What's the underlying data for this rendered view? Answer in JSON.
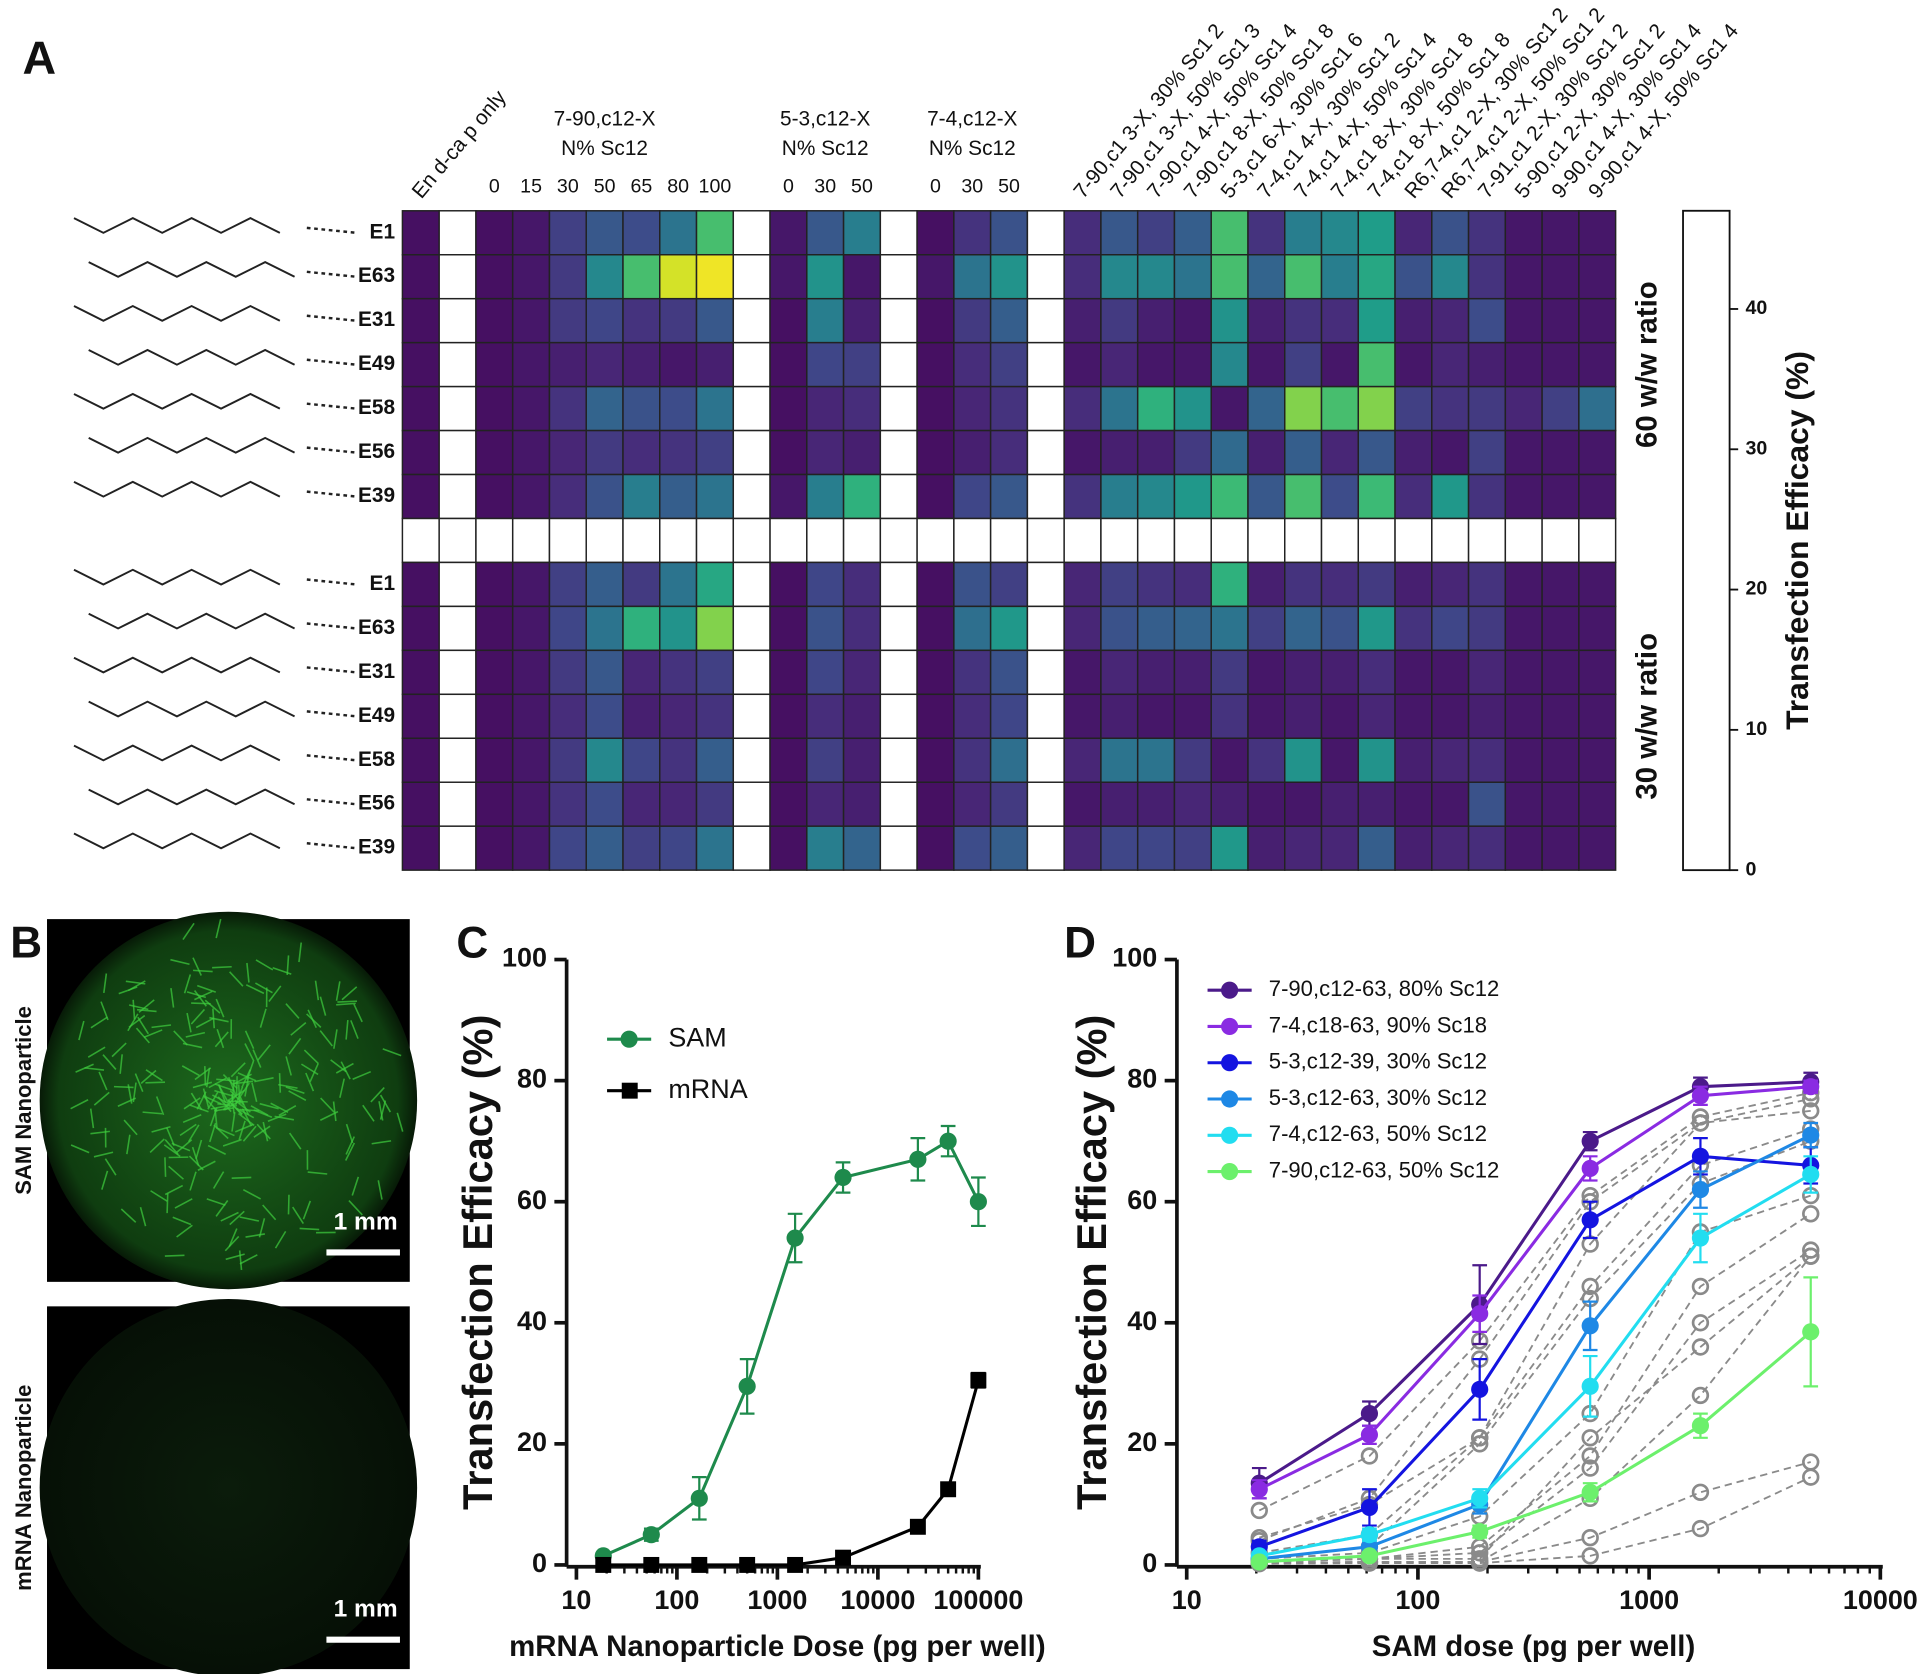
{
  "chart_data": [
    {
      "type": "heatmap",
      "panel": "A",
      "colorbar_label": "Transfection Efficacy (%)",
      "clim": [
        0,
        47
      ],
      "cticks": [
        0,
        10,
        20,
        30,
        40
      ],
      "colorbar_color": "#ffffff",
      "column_groups": [
        {
          "rotated": true,
          "columns": [
            "En d-ca p only"
          ]
        },
        {
          "title": [
            "7-90,c12-X",
            "N% Sc12"
          ],
          "columns": [
            "0",
            "15",
            "30",
            "50",
            "65",
            "80",
            "100"
          ]
        },
        {
          "title": [
            "5-3,c12-X",
            "N% Sc12"
          ],
          "columns": [
            "0",
            "30",
            "50"
          ]
        },
        {
          "title": [
            "7-4,c12-X",
            "N% Sc12"
          ],
          "columns": [
            "0",
            "30",
            "50"
          ]
        },
        {
          "rotated": true,
          "columns": [
            "7-90,c1 3-X, 30% Sc1 2",
            "7-90,c1 3-X, 50% Sc1 3",
            "7-90,c1 4-X, 50% Sc1 4",
            "7-90,c1 8-X, 50% Sc1 8",
            "5-3,c1 6-X, 30% Sc1 6",
            "7-4,c1 4-X, 30% Sc1 2",
            "7-4,c1 4-X, 50% Sc1 4",
            "7-4,c1 8-X, 30% Sc1 8",
            "7-4,c1 8-X, 50% Sc1 8",
            "R6,7-4,c1 2-X, 30% Sc1 2",
            "R6,7-4,c1 2-X, 50% Sc1 2",
            "7-91,c1 2-X, 30% Sc1 2",
            "5-90,c1 2-X, 30% Sc1 2",
            "9-90,c1 4-X, 30% Sc1 4",
            "9-90,c1 4-X, 50% Sc1 4"
          ]
        }
      ],
      "row_groups": [
        {
          "title": "60 w/w ratio",
          "rows": [
            "E1",
            "E63",
            "E31",
            "E49",
            "E58",
            "E56",
            "E39"
          ],
          "values": [
            [
              2,
              2,
              3,
              9,
              13,
              11,
              18,
              33,
              3,
              13,
              20,
              2,
              7,
              12,
              6,
              13,
              9,
              14,
              33,
              7,
              20,
              22,
              26,
              5,
              12,
              7,
              3,
              3,
              3
            ],
            [
              2,
              2,
              3,
              8,
              22,
              33,
              44,
              46,
              3,
              24,
              3,
              3,
              18,
              24,
              6,
              22,
              22,
              18,
              33,
              15,
              33,
              20,
              28,
              12,
              22,
              7,
              3,
              3,
              3
            ],
            [
              2,
              2,
              3,
              8,
              10,
              7,
              8,
              13,
              2,
              20,
              4,
              2,
              8,
              14,
              4,
              8,
              4,
              3,
              24,
              4,
              7,
              6,
              26,
              4,
              5,
              11,
              3,
              3,
              3
            ],
            [
              2,
              2,
              3,
              4,
              5,
              4,
              3,
              4,
              2,
              10,
              9,
              2,
              6,
              9,
              3,
              5,
              3,
              3,
              22,
              3,
              9,
              3,
              33,
              3,
              5,
              4,
              3,
              3,
              3
            ],
            [
              2,
              2,
              3,
              7,
              15,
              12,
              11,
              18,
              2,
              5,
              6,
              2,
              5,
              7,
              6,
              18,
              30,
              24,
              3,
              15,
              38,
              33,
              38,
              9,
              7,
              8,
              5,
              9,
              17
            ],
            [
              2,
              2,
              3,
              5,
              8,
              6,
              7,
              9,
              2,
              5,
              4,
              2,
              4,
              6,
              3,
              4,
              4,
              8,
              16,
              4,
              14,
              5,
              13,
              4,
              3,
              9,
              3,
              3,
              3
            ],
            [
              2,
              2,
              3,
              6,
              12,
              20,
              14,
              18,
              3,
              20,
              30,
              2,
              10,
              13,
              7,
              20,
              22,
              25,
              32,
              13,
              33,
              11,
              32,
              6,
              25,
              7,
              3,
              3,
              3
            ]
          ]
        },
        {
          "title": "30 w/w ratio",
          "rows": [
            "E1",
            "E63",
            "E31",
            "E49",
            "E58",
            "E56",
            "E39"
          ],
          "values": [
            [
              2,
              2,
              3,
              9,
              14,
              8,
              18,
              28,
              2,
              10,
              6,
              2,
              12,
              9,
              5,
              9,
              7,
              6,
              30,
              4,
              7,
              6,
              8,
              4,
              5,
              7,
              3,
              3,
              3
            ],
            [
              2,
              2,
              3,
              10,
              18,
              30,
              24,
              38,
              2,
              12,
              6,
              2,
              17,
              25,
              5,
              12,
              14,
              15,
              18,
              9,
              15,
              12,
              25,
              7,
              10,
              8,
              3,
              3,
              3
            ],
            [
              2,
              2,
              3,
              8,
              13,
              5,
              7,
              9,
              2,
              10,
              5,
              2,
              7,
              12,
              3,
              5,
              4,
              4,
              8,
              3,
              4,
              4,
              6,
              3,
              3,
              5,
              3,
              3,
              3
            ],
            [
              2,
              2,
              3,
              6,
              11,
              4,
              5,
              7,
              2,
              6,
              4,
              2,
              6,
              10,
              3,
              4,
              3,
              3,
              7,
              3,
              4,
              3,
              5,
              3,
              3,
              4,
              3,
              3,
              3
            ],
            [
              2,
              2,
              3,
              8,
              22,
              10,
              7,
              14,
              2,
              9,
              4,
              2,
              7,
              17,
              5,
              18,
              18,
              8,
              3,
              7,
              24,
              3,
              24,
              4,
              5,
              6,
              3,
              3,
              3
            ],
            [
              2,
              2,
              3,
              7,
              11,
              5,
              5,
              8,
              2,
              5,
              4,
              2,
              5,
              8,
              3,
              4,
              4,
              5,
              4,
              3,
              3,
              4,
              4,
              3,
              3,
              12,
              3,
              3,
              3
            ],
            [
              2,
              2,
              3,
              10,
              14,
              9,
              10,
              18,
              2,
              20,
              15,
              2,
              11,
              14,
              5,
              10,
              10,
              9,
              25,
              4,
              5,
              5,
              14,
              4,
              5,
              6,
              3,
              3,
              3
            ]
          ]
        }
      ]
    },
    {
      "type": "line",
      "panel": "C",
      "xlabel": "mRNA Nanoparticle Dose (pg per well)",
      "ylabel": "Transfection Efficacy (%)",
      "log_x": true,
      "xlim": [
        10,
        100000
      ],
      "xticks": [
        10,
        100,
        1000,
        10000,
        100000
      ],
      "ylim": [
        0,
        100
      ],
      "yticks": [
        0,
        20,
        40,
        60,
        80,
        100
      ],
      "x": [
        18.5,
        55.6,
        167,
        500,
        1500,
        4500,
        25000,
        50000,
        100000
      ],
      "series": [
        {
          "name": "SAM",
          "color": "#1e8a4c",
          "marker": "circle",
          "values": [
            1.5,
            5,
            11,
            29.5,
            54,
            64,
            67,
            70,
            60
          ],
          "errors": [
            0.5,
            1,
            3.5,
            4.5,
            4,
            2.5,
            3.5,
            2.5,
            4
          ]
        },
        {
          "name": "mRNA",
          "color": "#000000",
          "marker": "square",
          "values": [
            0,
            0,
            0,
            0,
            0,
            1.2,
            6.3,
            12.5,
            30.5
          ],
          "errors": [
            0.3,
            0.3,
            0.3,
            0.3,
            0.3,
            0.5,
            0.6,
            0.8,
            1.2
          ]
        }
      ]
    },
    {
      "type": "line",
      "panel": "D",
      "xlabel": "SAM dose (pg per well)",
      "ylabel": "Transfection Efficacy (%)",
      "log_x": true,
      "xlim": [
        10,
        10000
      ],
      "xticks": [
        10,
        100,
        1000,
        10000
      ],
      "ylim": [
        0,
        100
      ],
      "yticks": [
        0,
        20,
        40,
        60,
        80,
        100
      ],
      "x": [
        20.6,
        61.7,
        185,
        556,
        1667,
        5000
      ],
      "series": [
        {
          "color": "#8a8a8a",
          "dashed": true,
          "marker": "open-circle",
          "values": [
            9,
            18,
            37,
            61,
            74,
            78
          ]
        },
        {
          "color": "#8a8a8a",
          "dashed": true,
          "marker": "open-circle",
          "values": [
            4,
            11,
            34,
            60,
            73,
            77
          ]
        },
        {
          "color": "#8a8a8a",
          "dashed": true,
          "marker": "open-circle",
          "values": [
            4.5,
            10,
            21,
            53,
            73,
            75
          ]
        },
        {
          "color": "#8a8a8a",
          "dashed": true,
          "marker": "open-circle",
          "values": [
            2,
            5,
            21,
            46,
            66,
            72
          ]
        },
        {
          "color": "#8a8a8a",
          "dashed": true,
          "marker": "open-circle",
          "values": [
            1,
            3,
            20,
            44,
            63,
            70
          ]
        },
        {
          "color": "#8a8a8a",
          "dashed": true,
          "marker": "open-circle",
          "values": [
            1,
            2,
            8,
            25,
            55,
            61
          ]
        },
        {
          "color": "#8a8a8a",
          "dashed": true,
          "marker": "open-circle",
          "values": [
            0.5,
            1,
            3,
            18,
            46,
            58
          ]
        },
        {
          "color": "#8a8a8a",
          "dashed": true,
          "marker": "open-circle",
          "values": [
            0.5,
            1,
            2,
            16,
            40,
            52
          ]
        },
        {
          "color": "#8a8a8a",
          "dashed": true,
          "marker": "open-circle",
          "values": [
            0.5,
            1,
            1,
            21,
            36,
            51
          ]
        },
        {
          "color": "#8a8a8a",
          "dashed": true,
          "marker": "open-circle",
          "values": [
            0.3,
            0.5,
            0.5,
            11,
            28,
            51
          ]
        },
        {
          "color": "#8a8a8a",
          "dashed": true,
          "marker": "open-circle",
          "values": [
            0.3,
            0.5,
            0.5,
            4.5,
            12,
            17
          ]
        },
        {
          "color": "#8a8a8a",
          "dashed": true,
          "marker": "open-circle",
          "values": [
            0.2,
            0.3,
            0.3,
            1.5,
            6,
            14.5
          ]
        },
        {
          "name": "7-90,c12-63, 80% Sc12",
          "color": "#4b1a8a",
          "marker": "circle",
          "values": [
            13.5,
            25,
            43,
            70,
            79,
            79.8
          ],
          "errors": [
            2.5,
            2,
            6.5,
            1.5,
            1.5,
            1.5
          ]
        },
        {
          "name": "7-4,c18-63, 90% Sc18",
          "color": "#8a2be2",
          "marker": "circle",
          "values": [
            12.5,
            21.5,
            41.5,
            65.5,
            77.5,
            79
          ],
          "errors": [
            1.5,
            1.5,
            3,
            2,
            1.5,
            1
          ]
        },
        {
          "name": "5-3,c12-39, 30% Sc12",
          "color": "#1414e0",
          "marker": "circle",
          "values": [
            3,
            9.5,
            29,
            57,
            67.5,
            66
          ],
          "errors": [
            1,
            3,
            5,
            3,
            3,
            3
          ]
        },
        {
          "name": "5-3,c12-63, 30% Sc12",
          "color": "#1e88e5",
          "marker": "circle",
          "values": [
            1,
            3,
            10,
            39.5,
            62,
            71
          ],
          "errors": [
            0.5,
            1,
            1.5,
            4,
            3,
            2
          ]
        },
        {
          "name": "7-4,c12-63, 50% Sc12",
          "color": "#22ddf0",
          "marker": "circle",
          "values": [
            1.5,
            5,
            11,
            29.5,
            54,
            64.5
          ],
          "errors": [
            0.5,
            1,
            1.5,
            5,
            4,
            3
          ]
        },
        {
          "name": "7-90,c12-63, 50% Sc12",
          "color": "#6cf06c",
          "marker": "circle",
          "values": [
            0.5,
            1.5,
            5.5,
            12,
            23,
            38.5
          ],
          "errors": [
            0.3,
            0.5,
            1,
            1.5,
            2,
            9
          ]
        }
      ]
    }
  ],
  "panel_b": {
    "panel": "B",
    "images": [
      {
        "caption": "SAM Nanoparticle",
        "scale_bar": "1 mm"
      },
      {
        "caption": "mRNA Nanoparticle",
        "scale_bar": "1 mm"
      }
    ]
  }
}
